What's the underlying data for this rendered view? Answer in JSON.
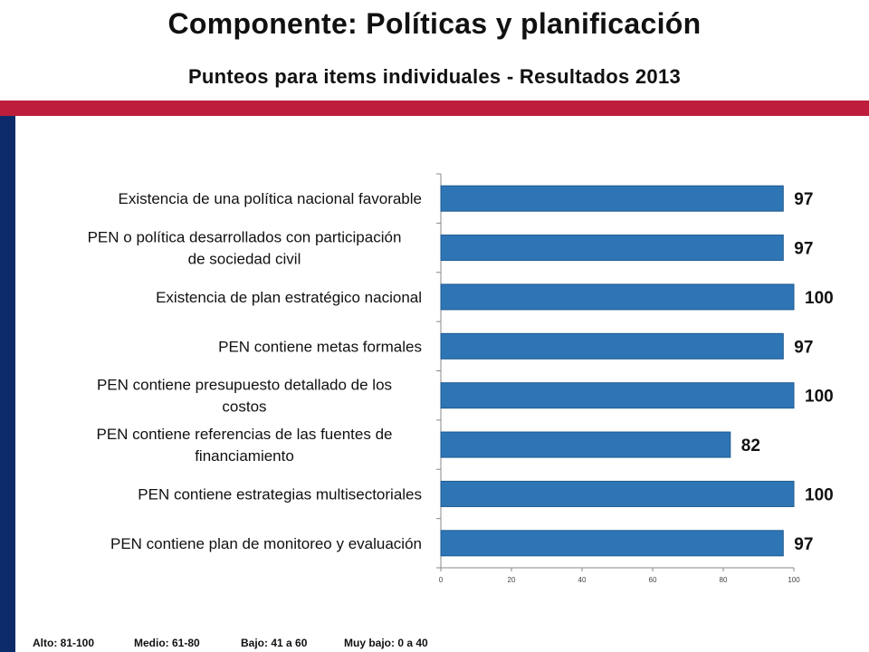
{
  "header": {
    "title": "Componente: Políticas y planificación",
    "subtitle": "Punteos para items individuales - Resultados 2013"
  },
  "colors": {
    "red_band": "#BE1E3C",
    "navy_band": "#0D2B6B",
    "bar": "#2E75B6",
    "bar_edge": "#1F5A8F",
    "axis": "#888888"
  },
  "legend": {
    "items": [
      "Alto: 81-100",
      "Medio: 61-80",
      "Bajo: 41 a 60",
      "Muy bajo: 0 a 40"
    ]
  },
  "chart_data": {
    "type": "bar",
    "orientation": "horizontal",
    "categories": [
      [
        "Existencia de una política nacional favorable"
      ],
      [
        "PEN o política desarrollados con participación",
        "de sociedad civil"
      ],
      [
        "Existencia de plan estratégico nacional"
      ],
      [
        "PEN contiene metas formales"
      ],
      [
        "PEN contiene presupuesto detallado de los",
        "costos"
      ],
      [
        "PEN contiene referencias de las fuentes de",
        "financiamiento"
      ],
      [
        "PEN contiene estrategias multisectoriales"
      ],
      [
        "PEN contiene plan de monitoreo y evaluación"
      ]
    ],
    "values": [
      97,
      97,
      100,
      97,
      100,
      82,
      100,
      97
    ],
    "data_labels": [
      "97",
      "97",
      "100",
      "97",
      "100",
      "82",
      "100",
      "97"
    ],
    "xlim": [
      0,
      100
    ],
    "xticks": [
      "0",
      "20",
      "40",
      "60",
      "80",
      "100"
    ],
    "grid": false
  }
}
